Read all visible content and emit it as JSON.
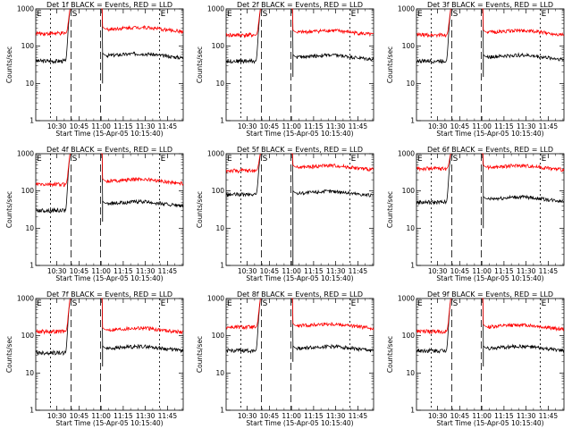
{
  "figure": {
    "ylabel": "Counts/sec",
    "xlabel": "Start Time (15-Apr-05 10:15:40)",
    "x_tick_labels": [
      "10:30",
      "10:45",
      "11:00",
      "11:15",
      "11:30",
      "11:45"
    ],
    "y_tick_labels": [
      "1",
      "10",
      "100",
      "1000"
    ],
    "markers": {
      "left": "E",
      "start": "S",
      "end": "E"
    },
    "colors": {
      "events": "#000000",
      "lld": "#ff0000"
    }
  },
  "chart_data": [
    {
      "type": "line",
      "title": "Det 1f BLACK = Events, RED = LLD",
      "xlabel": "Start Time (15-Apr-05 10:15:40)",
      "ylabel": "Counts/sec",
      "ylog": true,
      "ylim": [
        1,
        1000
      ],
      "x_ticks": [
        "10:30",
        "10:45",
        "11:00",
        "11:15",
        "11:30",
        "11:45"
      ],
      "markers": [
        "E",
        "S",
        "E"
      ],
      "series": [
        {
          "name": "Events",
          "color": "#000000",
          "levels": {
            "pre": 40,
            "post": 55,
            "dip": 10
          }
        },
        {
          "name": "LLD",
          "color": "#ff0000",
          "levels": {
            "pre": 220,
            "post": 280
          }
        }
      ]
    },
    {
      "type": "line",
      "title": "Det 2f BLACK = Events, RED = LLD",
      "xlabel": "Start Time (15-Apr-05 10:15:40)",
      "ylabel": "Counts/sec",
      "ylog": true,
      "ylim": [
        1,
        1000
      ],
      "x_ticks": [
        "10:30",
        "10:45",
        "11:00",
        "11:15",
        "11:30",
        "11:45"
      ],
      "markers": [
        "E",
        "S",
        "E"
      ],
      "series": [
        {
          "name": "Events",
          "color": "#000000",
          "levels": {
            "pre": 40,
            "post": 50,
            "dip": 15
          }
        },
        {
          "name": "LLD",
          "color": "#ff0000",
          "levels": {
            "pre": 200,
            "post": 230
          }
        }
      ]
    },
    {
      "type": "line",
      "title": "Det 3f BLACK = Events, RED = LLD",
      "xlabel": "Start Time (15-Apr-05 10:15:40)",
      "ylabel": "Counts/sec",
      "ylog": true,
      "ylim": [
        1,
        1000
      ],
      "x_ticks": [
        "10:30",
        "10:45",
        "11:00",
        "11:15",
        "11:30",
        "11:45"
      ],
      "markers": [
        "E",
        "S",
        "E"
      ],
      "series": [
        {
          "name": "Events",
          "color": "#000000",
          "levels": {
            "pre": 40,
            "post": 50,
            "dip": 15
          }
        },
        {
          "name": "LLD",
          "color": "#ff0000",
          "levels": {
            "pre": 200,
            "post": 230
          }
        }
      ]
    },
    {
      "type": "line",
      "title": "Det 4f BLACK = Events, RED = LLD",
      "xlabel": "Start Time (15-Apr-05 10:15:40)",
      "ylabel": "Counts/sec",
      "ylog": true,
      "ylim": [
        1,
        1000
      ],
      "x_ticks": [
        "10:30",
        "10:45",
        "11:00",
        "11:15",
        "11:30",
        "11:45"
      ],
      "markers": [
        "E",
        "S",
        "E"
      ],
      "series": [
        {
          "name": "Events",
          "color": "#000000",
          "levels": {
            "pre": 30,
            "post": 45,
            "dip": 15
          }
        },
        {
          "name": "LLD",
          "color": "#ff0000",
          "levels": {
            "pre": 150,
            "post": 180
          }
        }
      ]
    },
    {
      "type": "line",
      "title": "Det 5f BLACK = Events, RED = LLD",
      "xlabel": "Start Time (15-Apr-05 10:15:40)",
      "ylabel": "Counts/sec",
      "ylog": true,
      "ylim": [
        1,
        1000
      ],
      "x_ticks": [
        "10:30",
        "10:45",
        "11:00",
        "11:15",
        "11:30",
        "11:45"
      ],
      "markers": [
        "E",
        "S",
        "E"
      ],
      "series": [
        {
          "name": "Events",
          "color": "#000000",
          "levels": {
            "pre": 80,
            "post": 85,
            "dip": 1
          }
        },
        {
          "name": "LLD",
          "color": "#ff0000",
          "levels": {
            "pre": 350,
            "post": 420
          }
        }
      ]
    },
    {
      "type": "line",
      "title": "Det 6f BLACK = Events, RED = LLD",
      "xlabel": "Start Time (15-Apr-05 10:15:40)",
      "ylabel": "Counts/sec",
      "ylog": true,
      "ylim": [
        1,
        1000
      ],
      "x_ticks": [
        "10:30",
        "10:45",
        "11:00",
        "11:15",
        "11:30",
        "11:45"
      ],
      "markers": [
        "E",
        "S",
        "E"
      ],
      "series": [
        {
          "name": "Events",
          "color": "#000000",
          "levels": {
            "pre": 50,
            "post": 60,
            "dip": 10
          }
        },
        {
          "name": "LLD",
          "color": "#ff0000",
          "levels": {
            "pre": 400,
            "post": 420
          }
        }
      ]
    },
    {
      "type": "line",
      "title": "Det 7f BLACK = Events, RED = LLD",
      "xlabel": "Start Time (15-Apr-05 10:15:40)",
      "ylabel": "Counts/sec",
      "ylog": true,
      "ylim": [
        1,
        1000
      ],
      "x_ticks": [
        "10:30",
        "10:45",
        "11:00",
        "11:15",
        "11:30",
        "11:45"
      ],
      "markers": [
        "E",
        "S",
        "E"
      ],
      "series": [
        {
          "name": "Events",
          "color": "#000000",
          "levels": {
            "pre": 35,
            "post": 45,
            "dip": 15
          }
        },
        {
          "name": "LLD",
          "color": "#ff0000",
          "levels": {
            "pre": 130,
            "post": 140
          }
        }
      ]
    },
    {
      "type": "line",
      "title": "Det 8f BLACK = Events, RED = LLD",
      "xlabel": "Start Time (15-Apr-05 10:15:40)",
      "ylabel": "Counts/sec",
      "ylog": true,
      "ylim": [
        1,
        1000
      ],
      "x_ticks": [
        "10:30",
        "10:45",
        "11:00",
        "11:15",
        "11:30",
        "11:45"
      ],
      "markers": [
        "E",
        "S",
        "E"
      ],
      "series": [
        {
          "name": "Events",
          "color": "#000000",
          "levels": {
            "pre": 40,
            "post": 45,
            "dip": 20
          }
        },
        {
          "name": "LLD",
          "color": "#ff0000",
          "levels": {
            "pre": 170,
            "post": 180
          }
        }
      ]
    },
    {
      "type": "line",
      "title": "Det 9f BLACK = Events, RED = LLD",
      "xlabel": "Start Time (15-Apr-05 10:15:40)",
      "ylabel": "Counts/sec",
      "ylog": true,
      "ylim": [
        1,
        1000
      ],
      "x_ticks": [
        "10:30",
        "10:45",
        "11:00",
        "11:15",
        "11:30",
        "11:45"
      ],
      "markers": [
        "E",
        "S",
        "E"
      ],
      "series": [
        {
          "name": "Events",
          "color": "#000000",
          "levels": {
            "pre": 40,
            "post": 45,
            "dip": 15
          }
        },
        {
          "name": "LLD",
          "color": "#ff0000",
          "levels": {
            "pre": 130,
            "post": 170
          }
        }
      ]
    }
  ]
}
